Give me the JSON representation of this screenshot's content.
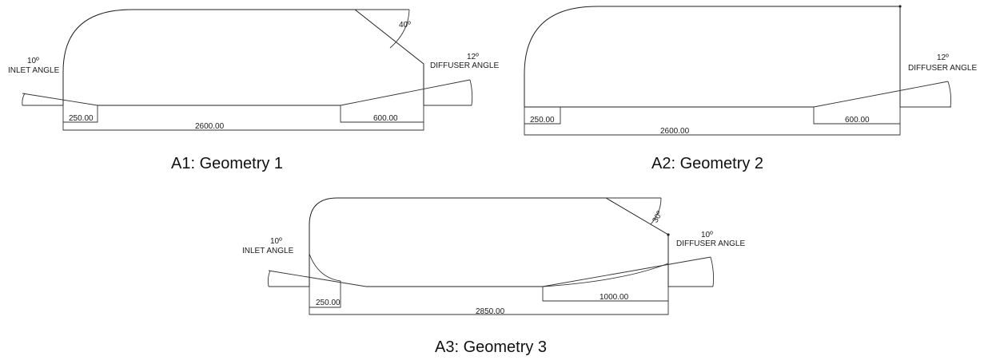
{
  "figures": [
    {
      "caption": "A1: Geometry 1",
      "top_angle": "40º",
      "inlet": {
        "value": "10º",
        "label": "INLET ANGLE"
      },
      "diffuser": {
        "value": "12º",
        "label": "DIFFUSER ANGLE"
      },
      "dims": {
        "inlet_len": "250.00",
        "diffuser_len": "600.00",
        "total_len": "2600.00"
      }
    },
    {
      "caption": "A2: Geometry 2",
      "diffuser": {
        "value": "12º",
        "label": "DIFFUSER ANGLE"
      },
      "dims": {
        "inlet_len": "250.00",
        "diffuser_len": "600.00",
        "total_len": "2600.00"
      }
    },
    {
      "caption": "A3: Geometry 3",
      "top_angle": "30º",
      "inlet": {
        "value": "10º",
        "label": "INLET ANGLE"
      },
      "diffuser": {
        "value": "10º",
        "label": "DIFFUSER ANGLE"
      },
      "dims": {
        "inlet_len": "250.00",
        "diffuser_len": "1000.00",
        "total_len": "2850.00"
      }
    }
  ]
}
